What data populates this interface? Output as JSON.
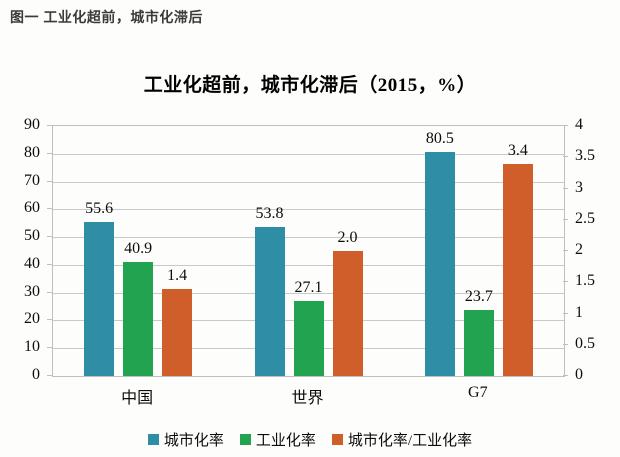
{
  "page": {
    "heading": "图一 工业化超前，城市化滞后"
  },
  "chart_data": {
    "type": "bar",
    "title": "工业化超前，城市化滞后（2015，%）",
    "categories": [
      "中国",
      "世界",
      "G7"
    ],
    "series": [
      {
        "name": "城市化率",
        "slug": "urbanization-rate",
        "axis": "left",
        "color": "#2d8ea6",
        "values": [
          55.6,
          53.8,
          80.5
        ],
        "labels": [
          "55.6",
          "53.8",
          "80.5"
        ]
      },
      {
        "name": "工业化率",
        "slug": "industrialization-rate",
        "axis": "left",
        "color": "#22a34f",
        "values": [
          40.9,
          27.1,
          23.7
        ],
        "labels": [
          "40.9",
          "27.1",
          "23.7"
        ]
      },
      {
        "name": "城市化率/工业化率",
        "slug": "urbanization-industrialization-ratio",
        "axis": "right",
        "color": "#cf5e2a",
        "values": [
          1.4,
          2.0,
          3.4
        ],
        "labels": [
          "1.4",
          "2.0",
          "3.4"
        ]
      }
    ],
    "left_axis": {
      "min": 0,
      "max": 90,
      "step": 10,
      "ticks": [
        "0",
        "10",
        "20",
        "30",
        "40",
        "50",
        "60",
        "70",
        "80",
        "90"
      ]
    },
    "right_axis": {
      "min": 0,
      "max": 4,
      "step": 0.5,
      "ticks": [
        "0",
        "0.5",
        "1",
        "1.5",
        "2",
        "2.5",
        "3",
        "3.5",
        "4"
      ]
    },
    "grid": true,
    "data_labels": true,
    "legend_position": "bottom"
  }
}
